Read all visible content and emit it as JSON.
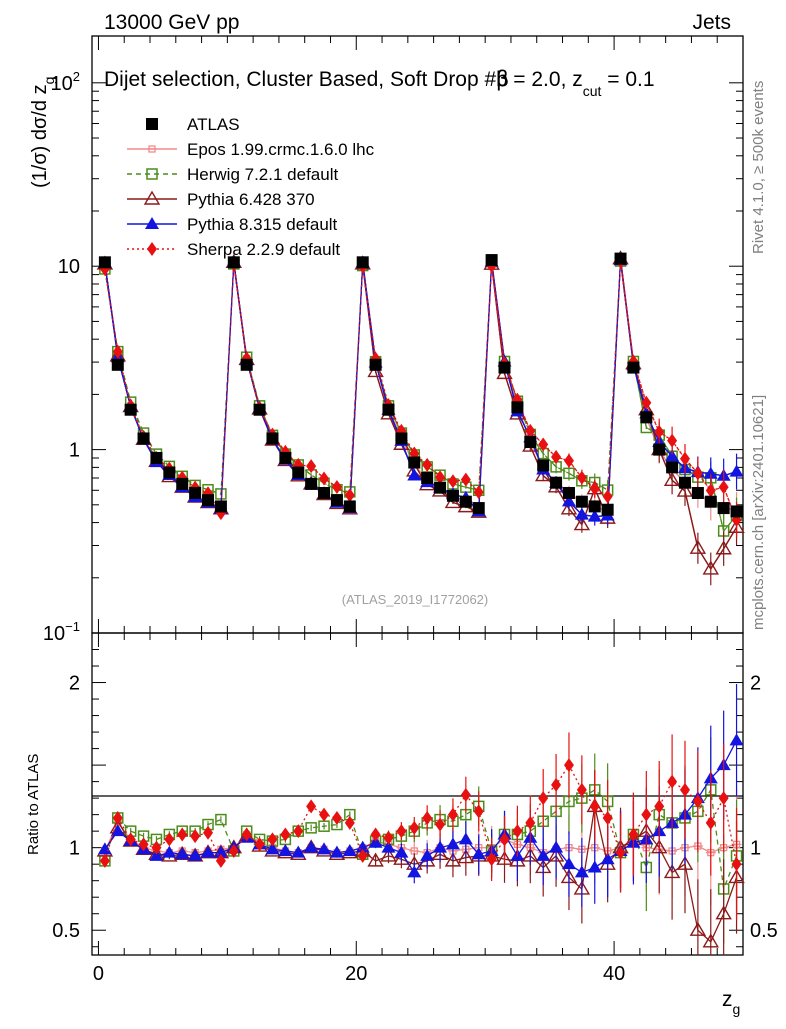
{
  "header": {
    "energy": "13000 GeV pp",
    "category": "Jets",
    "selection": "Dijet selection, Cluster Based, Soft Drop #b",
    "beta_part": "= 2.0, z",
    "zcut_sub": "cut",
    "zcut_val": " = 0.1",
    "rivet_label": "Rivet 4.1.0, ≥ 500k events",
    "mcplots_label": "mcplots.cern.ch [arXiv:2401.10621]",
    "analysis_id": "(ATLAS_2019_I1772062)"
  },
  "chart_data": {
    "type": "scatter",
    "upper": {
      "ylabel_prefix": "(1/σ) dσ/d z",
      "ylabel_sub": "g",
      "yscale": "log",
      "ylim": [
        0.1,
        180
      ],
      "yticks": [
        {
          "v": 0.1,
          "b": "10",
          "e": "−1"
        },
        {
          "v": 1,
          "t": "1"
        },
        {
          "v": 10,
          "t": "10"
        },
        {
          "v": 100,
          "b": "10",
          "e": "2"
        }
      ]
    },
    "lower": {
      "ylabel": "Ratio to ATLAS",
      "ylim": [
        0.35,
        2.3
      ],
      "yticks_left": [
        {
          "v": 0.5,
          "t": "0.5"
        },
        {
          "v": 1,
          "t": "1"
        },
        {
          "v": 2,
          "t": "2"
        }
      ],
      "yticks_right": [
        {
          "v": 0.5,
          "t": "0.5"
        },
        {
          "v": 1,
          "t": "1"
        },
        {
          "v": 2,
          "t": "2"
        }
      ]
    },
    "xlabel": "z",
    "xlabel_sub": "g",
    "xlim": [
      -0.5,
      50
    ],
    "xticks": [
      0,
      20,
      40
    ],
    "x": [
      0.5,
      1.5,
      2.5,
      3.5,
      4.5,
      5.5,
      6.5,
      7.5,
      8.5,
      9.5,
      10.5,
      11.5,
      12.5,
      13.5,
      14.5,
      15.5,
      16.5,
      17.5,
      18.5,
      19.5,
      20.5,
      21.5,
      22.5,
      23.5,
      24.5,
      25.5,
      26.5,
      27.5,
      28.5,
      29.5,
      30.5,
      31.5,
      32.5,
      33.5,
      34.5,
      35.5,
      36.5,
      37.5,
      38.5,
      39.5,
      40.5,
      41.5,
      42.5,
      43.5,
      44.5,
      45.5,
      46.5,
      47.5,
      48.5,
      49.5
    ],
    "data": {
      "name": "ATLAS",
      "values": [
        10.5,
        2.9,
        1.65,
        1.15,
        0.9,
        0.75,
        0.65,
        0.58,
        0.53,
        0.49,
        10.5,
        2.9,
        1.65,
        1.15,
        0.9,
        0.75,
        0.65,
        0.58,
        0.53,
        0.49,
        10.5,
        2.9,
        1.65,
        1.15,
        0.85,
        0.7,
        0.62,
        0.56,
        0.52,
        0.48,
        10.8,
        2.8,
        1.7,
        1.1,
        0.82,
        0.66,
        0.58,
        0.52,
        0.49,
        0.47,
        11.0,
        2.8,
        1.5,
        1.0,
        0.8,
        0.66,
        0.58,
        0.52,
        0.48,
        0.46
      ]
    },
    "series": [
      {
        "name": "Epos 1.99.crmc.1.6.0 lhc",
        "color": "#f08c8c",
        "ratio": [
          0.98,
          1.15,
          1.05,
          1.0,
          0.98,
          0.97,
          0.98,
          0.97,
          0.98,
          0.99,
          1.0,
          1.08,
          1.03,
          1.0,
          0.98,
          0.97,
          1.0,
          0.99,
          0.97,
          0.98,
          1.0,
          1.04,
          1.02,
          1.0,
          0.98,
          0.97,
          1.0,
          0.98,
          0.99,
          1.0,
          1.0,
          1.05,
          1.02,
          1.0,
          0.97,
          0.99,
          1.0,
          0.99,
          1.0,
          0.98,
          1.0,
          1.05,
          1.0,
          0.99,
          0.98,
          1.0,
          1.01,
          0.97,
          1.0,
          1.02
        ]
      },
      {
        "name": "Herwig 7.2.1 default",
        "color": "#4c8c1a",
        "ratio": [
          0.92,
          1.18,
          1.1,
          1.07,
          1.05,
          1.08,
          1.1,
          1.1,
          1.14,
          1.17,
          0.98,
          1.1,
          1.05,
          1.04,
          1.05,
          1.1,
          1.12,
          1.13,
          1.14,
          1.2,
          0.96,
          1.04,
          1.05,
          1.07,
          1.1,
          1.15,
          1.17,
          1.16,
          1.2,
          1.25,
          0.98,
          1.08,
          1.08,
          1.1,
          1.16,
          1.22,
          1.28,
          1.3,
          1.35,
          1.28,
          0.97,
          1.08,
          0.88,
          1.2,
          1.15,
          1.18,
          1.22,
          1.35,
          0.75,
          0.95
        ]
      },
      {
        "name": "Pythia 6.428 370",
        "color": "#8b1a1a",
        "ratio": [
          0.98,
          1.12,
          1.04,
          0.99,
          0.96,
          0.95,
          0.96,
          0.95,
          0.97,
          0.97,
          1.0,
          1.07,
          1.01,
          0.98,
          0.97,
          0.96,
          1.0,
          0.98,
          0.96,
          0.97,
          0.98,
          0.92,
          0.95,
          0.93,
          0.9,
          0.92,
          0.96,
          0.92,
          0.94,
          0.95,
          0.95,
          0.93,
          0.92,
          0.95,
          0.88,
          0.95,
          0.82,
          0.75,
          1.25,
          0.9,
          1.0,
          1.05,
          1.1,
          1.0,
          0.85,
          0.9,
          0.5,
          0.43,
          0.6,
          0.82
        ]
      },
      {
        "name": "Pythia 8.315 default",
        "color": "#1414e0",
        "ratio": [
          0.99,
          1.1,
          1.04,
          0.99,
          0.95,
          0.97,
          0.96,
          0.95,
          0.97,
          0.97,
          1.0,
          1.06,
          1.02,
          0.99,
          0.98,
          0.97,
          1.0,
          0.99,
          0.97,
          0.98,
          1.0,
          1.03,
          1.0,
          0.97,
          0.85,
          0.95,
          1.0,
          1.02,
          1.05,
          0.96,
          0.98,
          1.08,
          0.95,
          1.06,
          0.95,
          1.0,
          0.9,
          0.85,
          0.88,
          0.93,
          0.98,
          1.03,
          1.05,
          1.1,
          1.15,
          1.2,
          1.3,
          1.42,
          1.5,
          1.65
        ]
      },
      {
        "name": "Sherpa 2.2.9 default",
        "color": "#e81010",
        "ratio": [
          0.92,
          1.18,
          1.05,
          1.02,
          1.0,
          1.05,
          1.08,
          1.07,
          1.09,
          0.92,
          0.98,
          1.08,
          1.02,
          1.05,
          1.08,
          1.1,
          1.25,
          1.2,
          1.18,
          1.15,
          0.95,
          1.08,
          1.06,
          1.1,
          1.12,
          1.18,
          1.14,
          1.2,
          1.32,
          1.22,
          0.93,
          1.05,
          1.1,
          1.15,
          1.3,
          1.38,
          1.5,
          1.35,
          1.25,
          1.18,
          0.97,
          1.08,
          1.2,
          1.25,
          1.4,
          1.35,
          1.28,
          1.15,
          1.3,
          0.9
        ]
      }
    ],
    "legend": [
      "ATLAS",
      "Epos 1.99.crmc.1.6.0 lhc",
      "Herwig 7.2.1 default",
      "Pythia 6.428 370",
      "Pythia 8.315 default",
      "Sherpa 2.2.9 default"
    ]
  }
}
